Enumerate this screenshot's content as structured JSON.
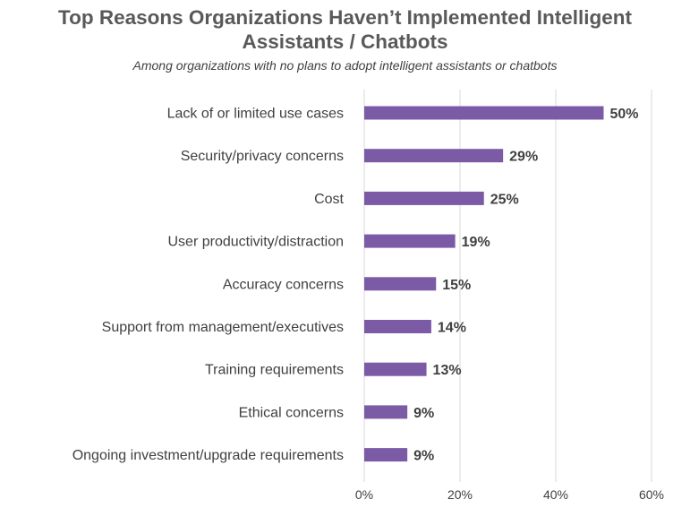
{
  "title_line1": "Top Reasons Organizations Haven’t Implemented Intelligent",
  "title_line2": "Assistants / Chatbots",
  "subtitle": "Among organizations with no plans to adopt intelligent assistants or chatbots",
  "colors": {
    "bar": "#7B5AA6",
    "grid": "#D9D9D9",
    "label": "#404040",
    "value": "#404040"
  },
  "chart_data": {
    "type": "bar",
    "orientation": "horizontal",
    "categories": [
      "Lack of or limited use cases",
      "Security/privacy concerns",
      "Cost",
      "User productivity/distraction",
      "Accuracy concerns",
      "Support from management/executives",
      "Training requirements",
      "Ethical concerns",
      "Ongoing investment/upgrade requirements"
    ],
    "values": [
      50,
      29,
      25,
      19,
      15,
      14,
      13,
      9,
      9
    ],
    "value_labels": [
      "50%",
      "29%",
      "25%",
      "19%",
      "15%",
      "14%",
      "13%",
      "9%",
      "9%"
    ],
    "xlim": [
      0,
      60
    ],
    "xticks": [
      0,
      20,
      40,
      60
    ],
    "xtick_labels": [
      "0%",
      "20%",
      "40%",
      "60%"
    ],
    "grid": true,
    "legend": false
  }
}
